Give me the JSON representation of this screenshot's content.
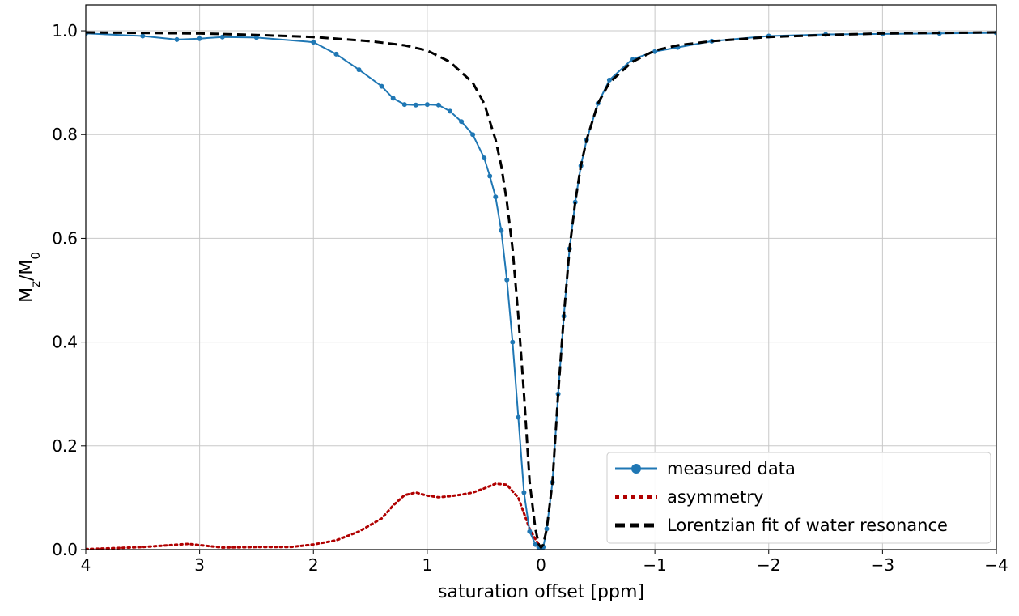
{
  "chart_data": {
    "type": "line",
    "xlabel": "saturation offset [ppm]",
    "ylabel": {
      "main": "M",
      "sub1": "z",
      "slash": "/M",
      "sub2": "0"
    },
    "xlim": [
      4,
      -4
    ],
    "ylim": [
      0.0,
      1.05
    ],
    "x_axis_reversed": true,
    "grid": true,
    "legend_position": "lower-right",
    "x_ticks": [
      4,
      3,
      2,
      1,
      0,
      -1,
      -2,
      -3,
      -4
    ],
    "x_tick_labels": [
      "4",
      "3",
      "2",
      "1",
      "0",
      "−1",
      "−2",
      "−3",
      "−4"
    ],
    "y_ticks": [
      0.0,
      0.2,
      0.4,
      0.6,
      0.8,
      1.0
    ],
    "y_tick_labels": [
      "0.0",
      "0.2",
      "0.4",
      "0.6",
      "0.8",
      "1.0"
    ],
    "series": [
      {
        "name": "measured data",
        "style": "line-markers",
        "color": "#1f77b4",
        "x": [
          4.0,
          3.5,
          3.2,
          3.0,
          2.8,
          2.5,
          2.0,
          1.8,
          1.6,
          1.4,
          1.3,
          1.2,
          1.1,
          1.0,
          0.9,
          0.8,
          0.7,
          0.6,
          0.5,
          0.45,
          0.4,
          0.35,
          0.3,
          0.25,
          0.2,
          0.15,
          0.1,
          0.05,
          0.02,
          0.0,
          -0.02,
          -0.05,
          -0.1,
          -0.15,
          -0.2,
          -0.25,
          -0.3,
          -0.35,
          -0.4,
          -0.5,
          -0.6,
          -0.8,
          -1.0,
          -1.2,
          -1.5,
          -2.0,
          -2.5,
          -3.0,
          -3.5,
          -4.0
        ],
        "y": [
          0.995,
          0.99,
          0.983,
          0.985,
          0.988,
          0.987,
          0.978,
          0.955,
          0.925,
          0.893,
          0.87,
          0.858,
          0.857,
          0.858,
          0.857,
          0.845,
          0.825,
          0.8,
          0.755,
          0.72,
          0.68,
          0.615,
          0.52,
          0.4,
          0.255,
          0.11,
          0.035,
          0.01,
          0.004,
          0.003,
          0.005,
          0.04,
          0.13,
          0.3,
          0.45,
          0.58,
          0.67,
          0.74,
          0.79,
          0.86,
          0.905,
          0.945,
          0.96,
          0.968,
          0.98,
          0.99,
          0.993,
          0.994,
          0.995,
          0.996
        ]
      },
      {
        "name": "asymmetry",
        "style": "dotted",
        "color": "#b00000",
        "x": [
          4.0,
          3.5,
          3.1,
          2.8,
          2.5,
          2.2,
          2.0,
          1.8,
          1.6,
          1.4,
          1.3,
          1.2,
          1.1,
          1.0,
          0.9,
          0.8,
          0.7,
          0.6,
          0.5,
          0.4,
          0.3,
          0.2,
          0.15,
          0.1,
          0.05,
          0.0
        ],
        "y": [
          0.001,
          0.005,
          0.011,
          0.004,
          0.005,
          0.005,
          0.01,
          0.018,
          0.035,
          0.06,
          0.085,
          0.105,
          0.11,
          0.104,
          0.101,
          0.103,
          0.106,
          0.11,
          0.118,
          0.127,
          0.125,
          0.1,
          0.07,
          0.04,
          0.02,
          0.003
        ]
      },
      {
        "name": "Lorentzian fit of water resonance",
        "style": "dashed",
        "color": "#000000",
        "x": [
          4.0,
          3.0,
          2.5,
          2.0,
          1.5,
          1.2,
          1.0,
          0.8,
          0.6,
          0.5,
          0.4,
          0.35,
          0.3,
          0.25,
          0.2,
          0.15,
          0.1,
          0.05,
          0.02,
          0.0,
          -0.02,
          -0.05,
          -0.1,
          -0.15,
          -0.2,
          -0.25,
          -0.3,
          -0.35,
          -0.4,
          -0.5,
          -0.6,
          -0.8,
          -1.0,
          -1.2,
          -1.5,
          -2.0,
          -2.5,
          -3.0,
          -4.0
        ],
        "y": [
          0.997,
          0.995,
          0.992,
          0.988,
          0.98,
          0.972,
          0.962,
          0.94,
          0.9,
          0.86,
          0.79,
          0.74,
          0.67,
          0.58,
          0.45,
          0.3,
          0.13,
          0.04,
          0.01,
          0.004,
          0.01,
          0.04,
          0.13,
          0.3,
          0.45,
          0.58,
          0.67,
          0.74,
          0.79,
          0.86,
          0.9,
          0.94,
          0.962,
          0.972,
          0.98,
          0.988,
          0.992,
          0.995,
          0.997
        ]
      }
    ]
  }
}
